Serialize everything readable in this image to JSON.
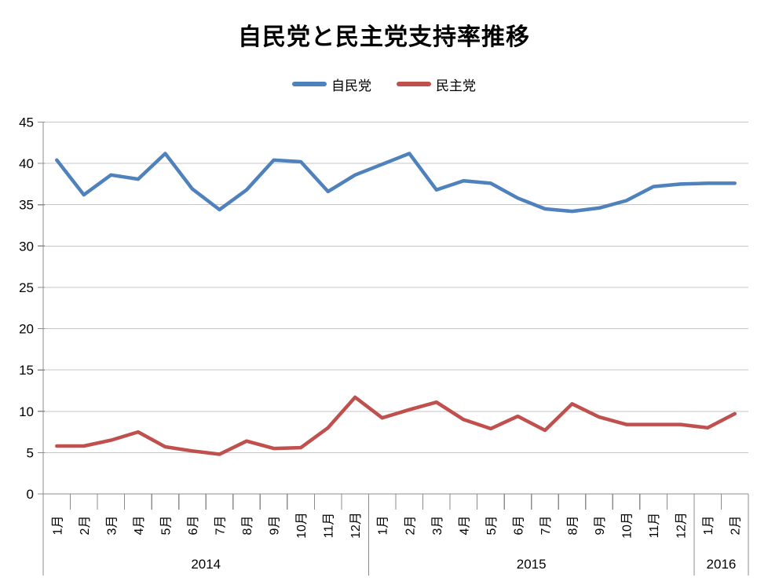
{
  "title": "自民党と民主党支持率推移",
  "legend": {
    "items": [
      {
        "label": "自民党",
        "color": "#4F81BD"
      },
      {
        "label": "民主党",
        "color": "#C0504D"
      }
    ]
  },
  "chart_data": {
    "type": "line",
    "title": "自民党と民主党支持率推移",
    "xlabel": "",
    "ylabel": "",
    "ylim": [
      0,
      45
    ],
    "ytick_step": 5,
    "yticks": [
      0,
      5,
      10,
      15,
      20,
      25,
      30,
      35,
      40,
      45
    ],
    "grid": true,
    "legend_position": "top",
    "x_groups": [
      {
        "year": "2014",
        "months": [
          "1月",
          "2月",
          "3月",
          "4月",
          "5月",
          "6月",
          "7月",
          "8月",
          "9月",
          "10月",
          "11月",
          "12月"
        ]
      },
      {
        "year": "2015",
        "months": [
          "1月",
          "2月",
          "3月",
          "4月",
          "5月",
          "6月",
          "7月",
          "8月",
          "9月",
          "10月",
          "11月",
          "12月"
        ]
      },
      {
        "year": "2016",
        "months": [
          "1月",
          "2月"
        ]
      }
    ],
    "series": [
      {
        "name": "自民党",
        "color": "#4F81BD",
        "values": [
          40.4,
          36.2,
          38.6,
          38.1,
          41.2,
          36.9,
          34.4,
          36.8,
          40.4,
          40.2,
          36.6,
          38.6,
          39.9,
          41.2,
          36.8,
          37.9,
          37.6,
          35.8,
          34.5,
          34.2,
          34.6,
          35.5,
          37.2,
          37.5,
          37.6,
          37.6
        ]
      },
      {
        "name": "民主党",
        "color": "#C0504D",
        "values": [
          5.8,
          5.8,
          6.5,
          7.5,
          5.7,
          5.2,
          4.8,
          6.4,
          5.5,
          5.6,
          8.0,
          11.7,
          9.2,
          10.2,
          11.1,
          9.0,
          7.9,
          9.4,
          7.7,
          10.9,
          9.3,
          8.4,
          8.4,
          8.4,
          8.0,
          9.7
        ]
      }
    ],
    "colors": {
      "grid": "#C6C6C6",
      "axis": "#8C8C8C",
      "text": "#000000",
      "background": "#FFFFFF"
    }
  }
}
